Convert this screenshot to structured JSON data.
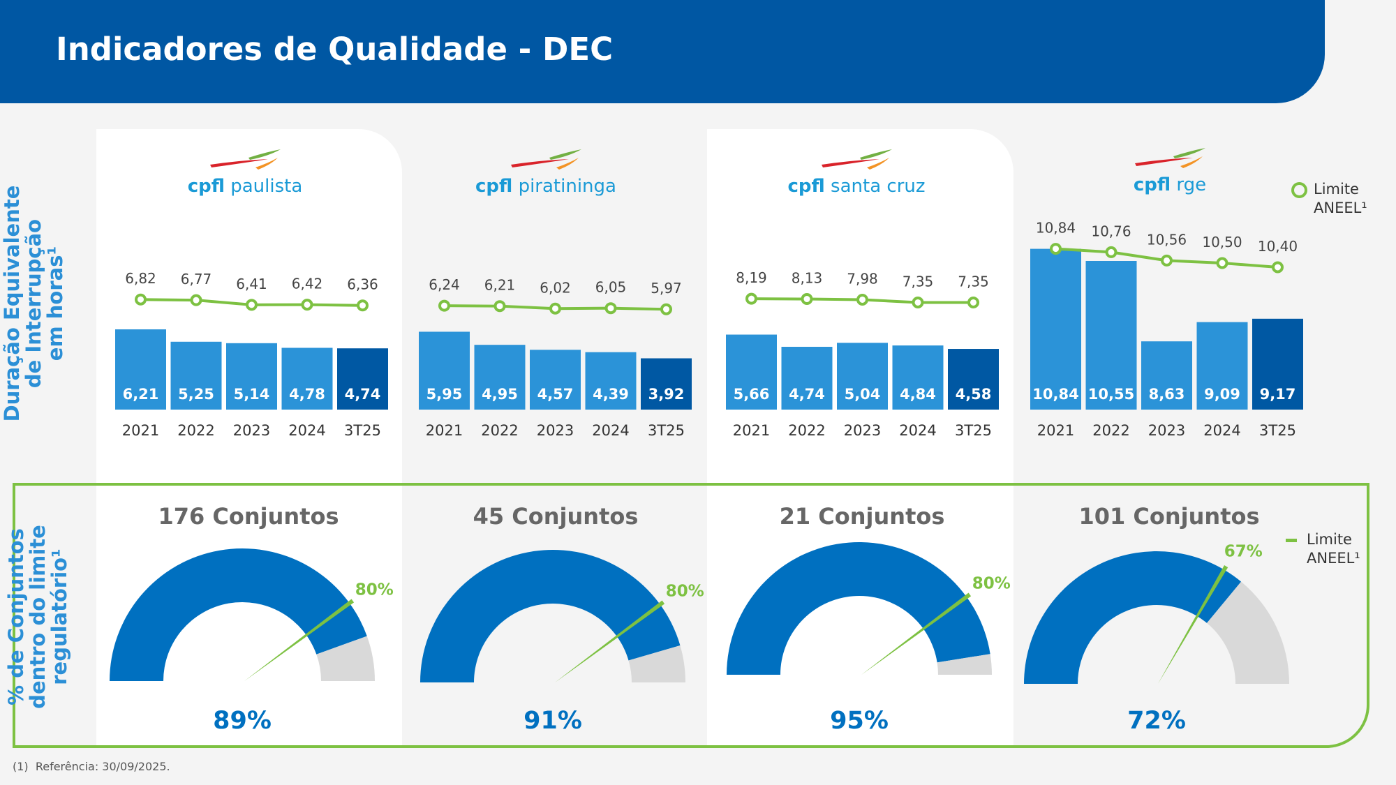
{
  "header": {
    "title": "Indicadores de Qualidade - DEC"
  },
  "side_labels": {
    "dec": [
      "Duração Equivalente",
      "de Interrupção",
      "em horas¹"
    ],
    "conjuntos": [
      "% de Conjuntos",
      "dentro do limite",
      "regulatório¹"
    ]
  },
  "legend": {
    "line_label_1": "Limite",
    "line_label_2": "ANEEL¹"
  },
  "colors": {
    "bar": "#2b93d8",
    "bar_last": "#0058a3",
    "limit": "#7dc142",
    "gauge_fill": "#0070c0",
    "gauge_rest": "#d9d9d9",
    "header": "#0057a3"
  },
  "companies": [
    {
      "brand": "cpfl",
      "name": "paulista"
    },
    {
      "brand": "cpfl",
      "name": "piratininga"
    },
    {
      "brand": "cpfl",
      "name": "santa cruz"
    },
    {
      "brand": "cpfl",
      "name": "rge"
    }
  ],
  "chart_data": [
    {
      "type": "bar+line",
      "company": "cpfl paulista",
      "categories": [
        "2021",
        "2022",
        "2023",
        "2024",
        "3T25"
      ],
      "series": [
        {
          "name": "DEC",
          "kind": "bar",
          "values": [
            6.21,
            5.25,
            5.14,
            4.78,
            4.74
          ],
          "labels": [
            "6,21",
            "5,25",
            "5,14",
            "4,78",
            "4,74"
          ]
        },
        {
          "name": "Limite ANEEL¹",
          "kind": "line",
          "values": [
            6.82,
            6.77,
            6.41,
            6.42,
            6.36
          ],
          "labels": [
            "6,82",
            "6,77",
            "6,41",
            "6,42",
            "6,36"
          ]
        }
      ],
      "ylim": [
        0,
        16.2
      ],
      "y2lim": [
        -1.7,
        14.5
      ]
    },
    {
      "type": "bar+line",
      "company": "cpfl piratininga",
      "categories": [
        "2021",
        "2022",
        "2023",
        "2024",
        "3T25"
      ],
      "series": [
        {
          "name": "DEC",
          "kind": "bar",
          "values": [
            5.95,
            4.95,
            4.57,
            4.39,
            3.92
          ],
          "labels": [
            "5,95",
            "4,95",
            "4,57",
            "4,39",
            "3,92"
          ]
        },
        {
          "name": "Limite ANEEL¹",
          "kind": "line",
          "values": [
            6.24,
            6.21,
            6.02,
            6.05,
            5.97
          ],
          "labels": [
            "6,24",
            "6,21",
            "6,02",
            "6,05",
            "5,97"
          ]
        }
      ],
      "ylim": [
        0,
        16
      ],
      "y2lim": [
        -1.7,
        14.3
      ]
    },
    {
      "type": "bar+line",
      "company": "cpfl santa cruz",
      "categories": [
        "2021",
        "2022",
        "2023",
        "2024",
        "3T25"
      ],
      "series": [
        {
          "name": "DEC",
          "kind": "bar",
          "values": [
            5.66,
            4.74,
            5.04,
            4.84,
            4.58
          ],
          "labels": [
            "5,66",
            "4,74",
            "5,04",
            "4,84",
            "4,58"
          ]
        },
        {
          "name": "Limite ANEEL¹",
          "kind": "line",
          "values": [
            8.19,
            8.13,
            7.98,
            7.35,
            7.35
          ],
          "labels": [
            "8,19",
            "8,13",
            "7,98",
            "7,35",
            "7,35"
          ]
        }
      ],
      "ylim": [
        0,
        15.8
      ],
      "y2lim": [
        -16.7,
        30.3
      ]
    },
    {
      "type": "bar+line",
      "company": "cpfl rge",
      "categories": [
        "2021",
        "2022",
        "2023",
        "2024",
        "3T25"
      ],
      "series": [
        {
          "name": "DEC",
          "kind": "bar",
          "values": [
            10.84,
            10.55,
            8.63,
            9.09,
            9.17
          ],
          "labels": [
            "10,84",
            "10,55",
            "8,63",
            "9,09",
            "9,17"
          ]
        },
        {
          "name": "Limite ANEEL¹",
          "kind": "line",
          "values": [
            10.84,
            10.76,
            10.56,
            10.5,
            10.4
          ],
          "labels": [
            "10,84",
            "10,76",
            "10,56",
            "10,50",
            "10,40"
          ]
        }
      ],
      "ylim": [
        7,
        12
      ],
      "y2lim": [
        7,
        12
      ]
    },
    {
      "type": "gauge",
      "company": "cpfl paulista",
      "title": "176 Conjuntos",
      "value": 89,
      "value_label": "89%",
      "limit": 80,
      "limit_label": "80%"
    },
    {
      "type": "gauge",
      "company": "cpfl piratininga",
      "title": "45 Conjuntos",
      "value": 91,
      "value_label": "91%",
      "limit": 80,
      "limit_label": "80%"
    },
    {
      "type": "gauge",
      "company": "cpfl santa cruz",
      "title": "21 Conjuntos",
      "value": 95,
      "value_label": "95%",
      "limit": 80,
      "limit_label": "80%"
    },
    {
      "type": "gauge",
      "company": "cpfl rge",
      "title": "101 Conjuntos",
      "value": 72,
      "value_label": "72%",
      "limit": 67,
      "limit_label": "67%"
    }
  ],
  "footer": {
    "note": "(1)  Referência: 30/09/2025."
  }
}
